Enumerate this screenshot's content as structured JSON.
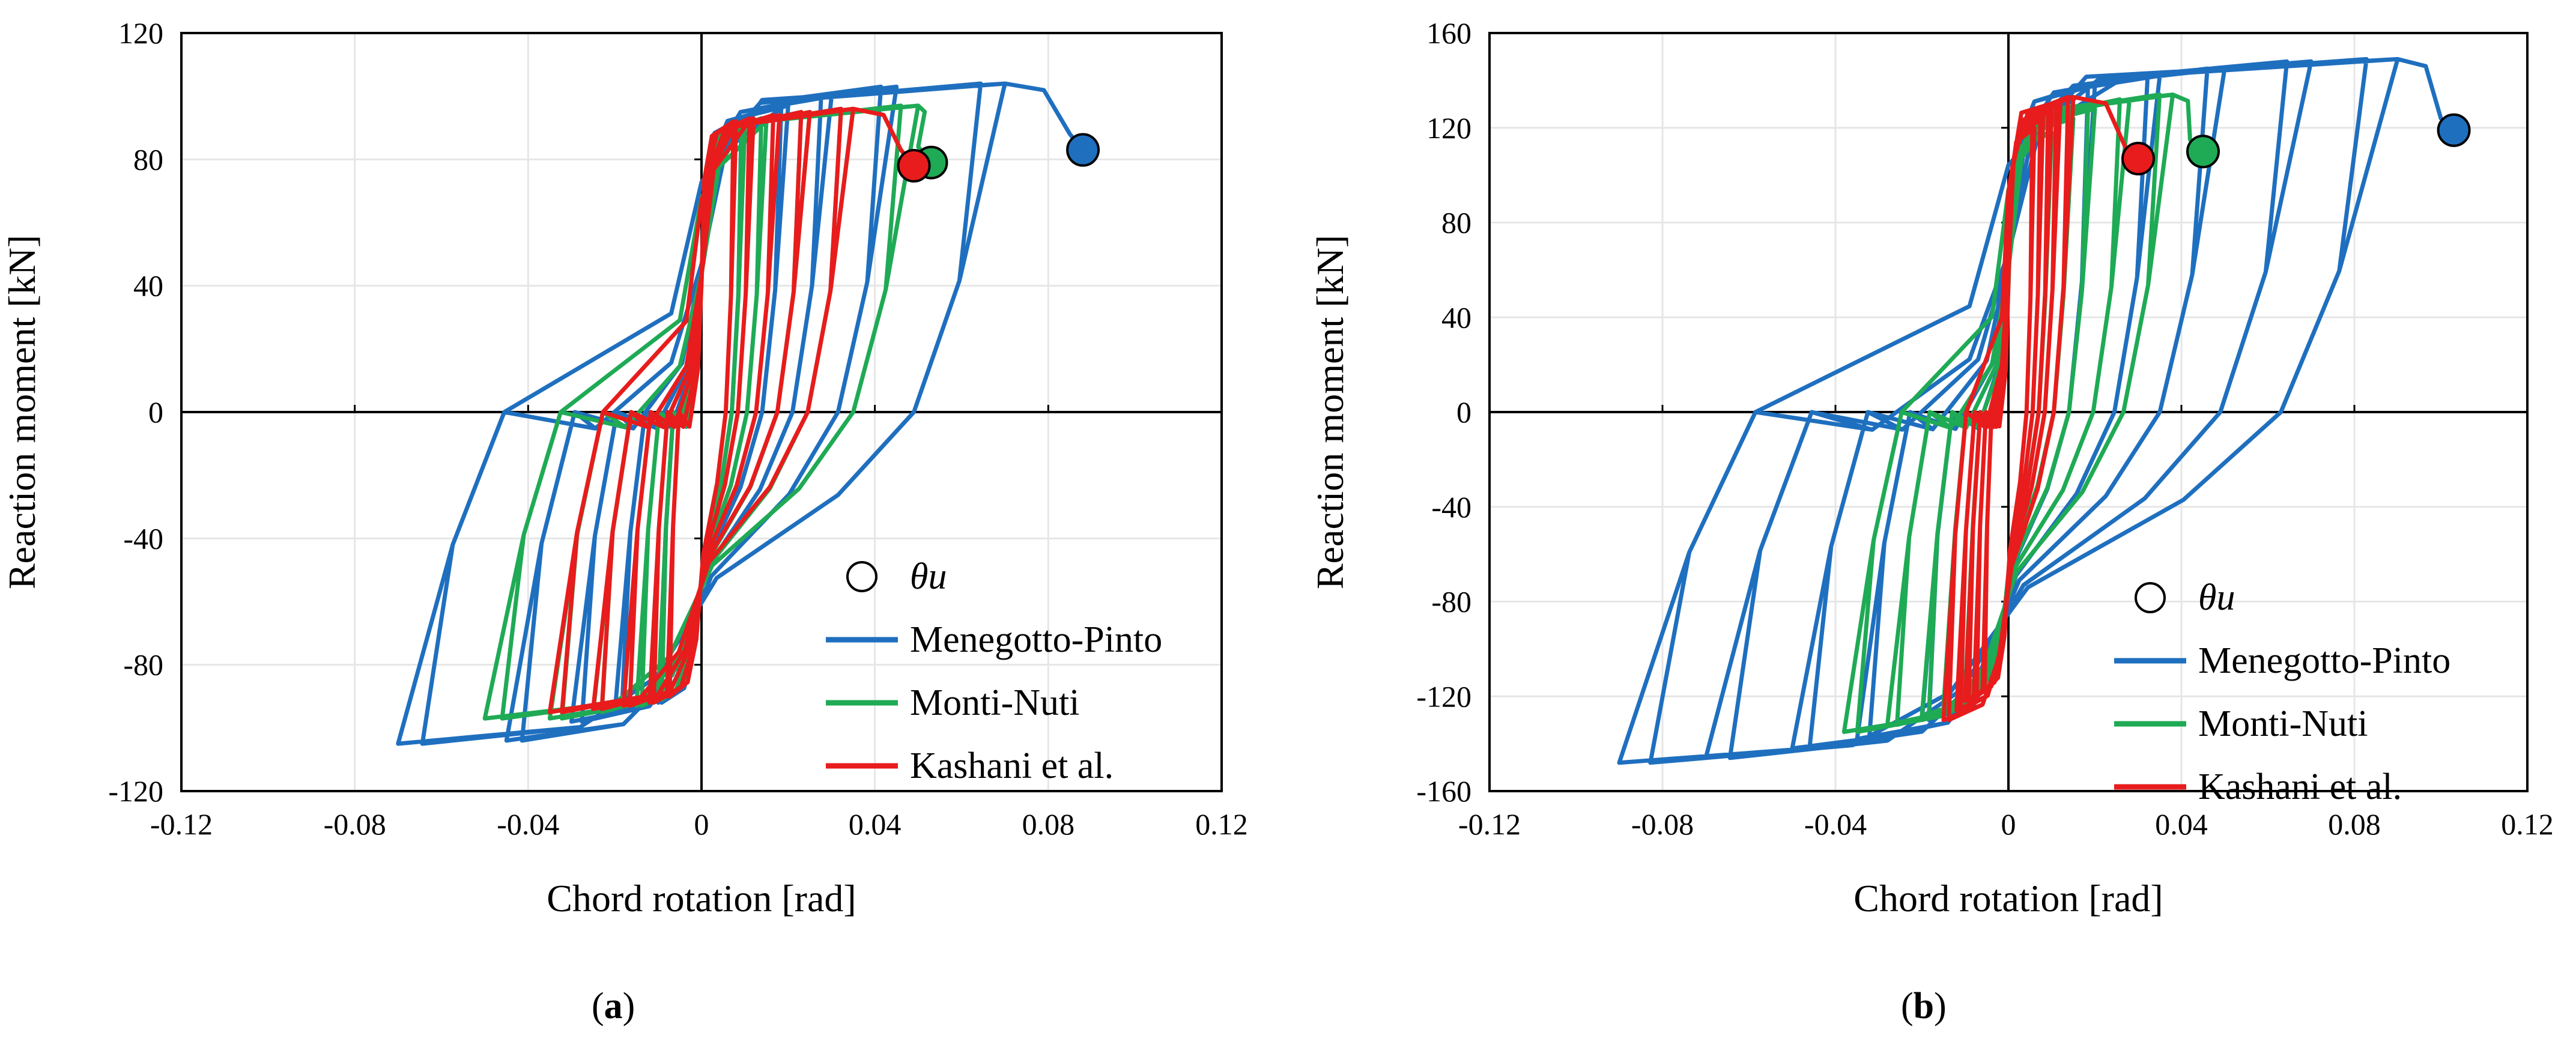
{
  "chart_data": [
    {
      "type": "line",
      "panel": "a",
      "title": "",
      "xlabel": "Chord rotation [rad]",
      "ylabel": "Reaction moment [kN]",
      "xlim": [
        -0.12,
        0.12
      ],
      "ylim": [
        -120,
        120
      ],
      "xticks": [
        -0.12,
        -0.08,
        -0.04,
        0,
        0.04,
        0.08,
        0.12
      ],
      "xtick_labels": [
        "-0.12",
        "-0.08",
        "-0.04",
        "0",
        "0.04",
        "0.08",
        "0.12"
      ],
      "yticks": [
        -120,
        -80,
        -40,
        0,
        40,
        80,
        120
      ],
      "ytick_labels": [
        "-120",
        "-80",
        "-40",
        "0",
        "40",
        "80",
        "120"
      ],
      "grid": true,
      "legend_position": "bottom-right",
      "legend": [
        {
          "label": "θu",
          "kind": "marker"
        },
        {
          "label": "Menegotto-Pinto",
          "kind": "line",
          "series": "Menegotto-Pinto"
        },
        {
          "label": "Monti-Nuti",
          "kind": "line",
          "series": "Monti-Nuti"
        },
        {
          "label": "Kashani et al.",
          "kind": "line",
          "series": "Kashani et al."
        }
      ],
      "series": [
        {
          "name": "Menegotto-Pinto",
          "color": "#1f6fbf",
          "amps": [
            0.01,
            0.02,
            0.03,
            0.045,
            0.07
          ],
          "ypos": [
            93,
            97,
            100,
            103,
            104
          ],
          "yneg": [
            -92,
            -95,
            -98,
            -104,
            -105
          ],
          "ult_x": 0.088,
          "ult_y": 83
        },
        {
          "name": "Monti-Nuti",
          "color": "#1faa55",
          "amps": [
            0.01,
            0.015,
            0.025,
            0.035,
            0.05
          ],
          "ypos": [
            90,
            93,
            95,
            96,
            97
          ],
          "yneg": [
            -91,
            -93,
            -95,
            -97,
            -97
          ],
          "ult_x": 0.053,
          "ult_y": 79
        },
        {
          "name": "Kashani et al.",
          "color": "#e81c1c",
          "amps": [
            0.008,
            0.012,
            0.018,
            0.025,
            0.035
          ],
          "ypos": [
            92,
            93,
            94,
            95,
            96
          ],
          "yneg": [
            -90,
            -92,
            -93,
            -94,
            -95
          ],
          "ult_x": 0.049,
          "ult_y": 78
        }
      ]
    },
    {
      "type": "line",
      "panel": "b",
      "title": "",
      "xlabel": "Chord rotation [rad]",
      "ylabel": "Reaction moment [kN]",
      "xlim": [
        -0.12,
        0.12
      ],
      "ylim": [
        -160,
        160
      ],
      "xticks": [
        -0.12,
        -0.08,
        -0.04,
        0,
        0.04,
        0.08,
        0.12
      ],
      "xtick_labels": [
        "-0.12",
        "-0.08",
        "-0.04",
        "0",
        "0.04",
        "0.08",
        "0.12"
      ],
      "yticks": [
        -160,
        -120,
        -80,
        -40,
        0,
        40,
        80,
        120,
        160
      ],
      "ytick_labels": [
        "-160",
        "-120",
        "-80",
        "-40",
        "0",
        "40",
        "80",
        "120",
        "160"
      ],
      "grid": true,
      "legend_position": "bottom-right",
      "legend": [
        {
          "label": "θu",
          "kind": "marker"
        },
        {
          "label": "Menegotto-Pinto",
          "kind": "line",
          "series": "Menegotto-Pinto"
        },
        {
          "label": "Monti-Nuti",
          "kind": "line",
          "series": "Monti-Nuti"
        },
        {
          "label": "Kashani et al.",
          "kind": "line",
          "series": "Kashani et al."
        }
      ],
      "series": [
        {
          "name": "Menegotto-Pinto",
          "color": "#1f6fbf",
          "amps": [
            0.02,
            0.035,
            0.05,
            0.07,
            0.09
          ],
          "ypos": [
            138,
            142,
            145,
            148,
            149
          ],
          "yneg": [
            -130,
            -138,
            -142,
            -146,
            -148
          ],
          "ult_x": 0.103,
          "ult_y": 119
        },
        {
          "name": "Monti-Nuti",
          "color": "#1faa55",
          "amps": [
            0.01,
            0.015,
            0.02,
            0.028,
            0.038
          ],
          "ypos": [
            118,
            124,
            128,
            132,
            134
          ],
          "yneg": [
            -118,
            -124,
            -128,
            -132,
            -135
          ],
          "ult_x": 0.045,
          "ult_y": 110
        },
        {
          "name": "Kashani et al.",
          "color": "#e81c1c",
          "amps": [
            0.006,
            0.008,
            0.01,
            0.012,
            0.015
          ],
          "ypos": [
            120,
            124,
            127,
            130,
            133
          ],
          "yneg": [
            -118,
            -120,
            -122,
            -126,
            -130
          ],
          "ult_x": 0.03,
          "ult_y": 107
        }
      ]
    }
  ],
  "panel_labels": [
    {
      "open": "(",
      "letter": "a",
      "close": ")"
    },
    {
      "open": "(",
      "letter": "b",
      "close": ")"
    }
  ],
  "colors": {
    "menegotto": "#1f6fbf",
    "monti": "#1faa55",
    "kashani": "#e81c1c",
    "ultimate_marker": "#ffffff"
  }
}
